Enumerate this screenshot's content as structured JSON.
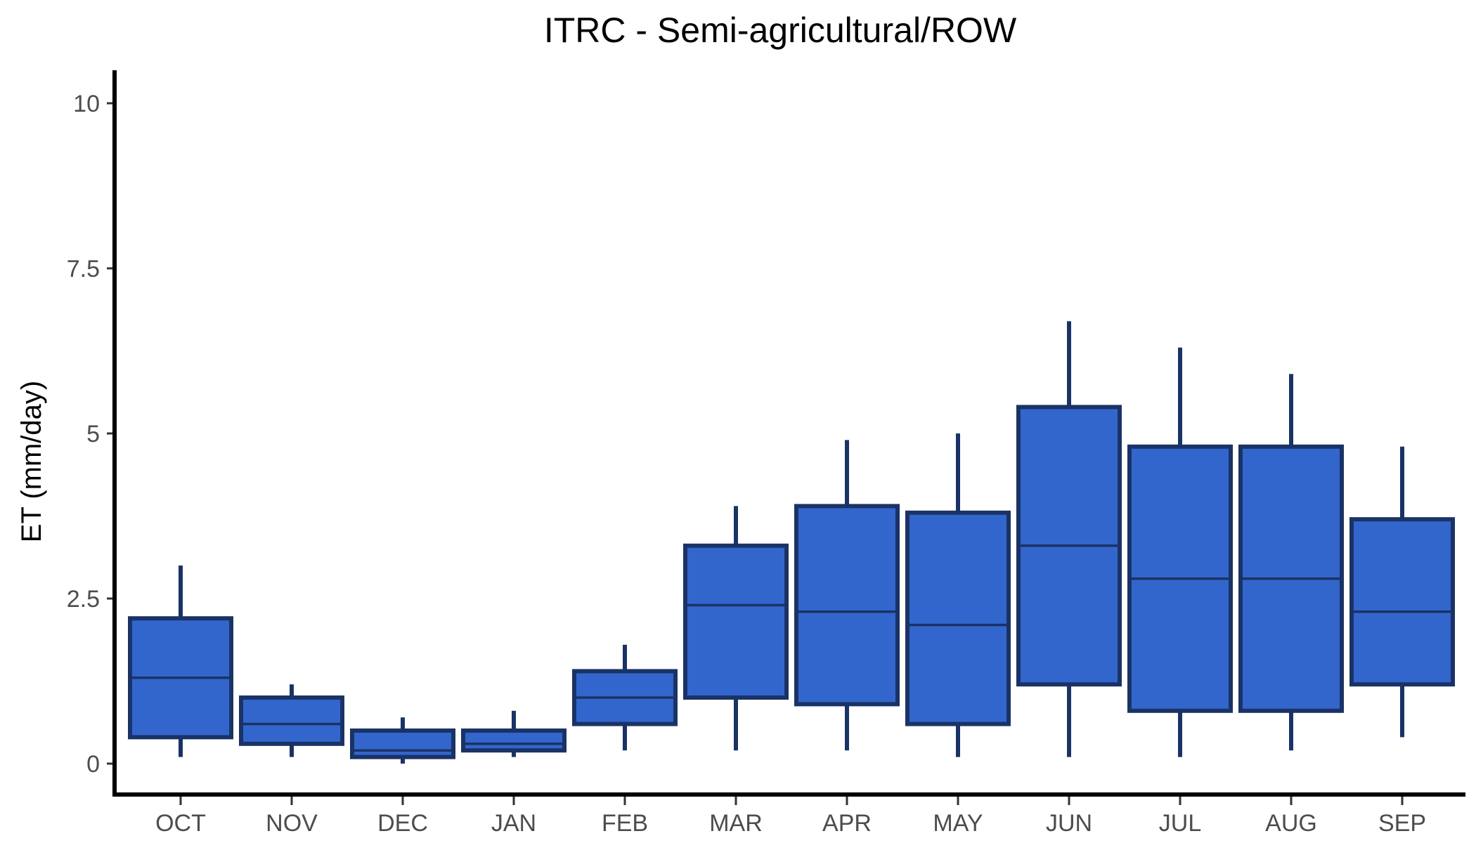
{
  "chart_data": {
    "type": "box",
    "title": "ITRC - Semi-agricultural/ROW",
    "xlabel": "",
    "ylabel": "ET (mm/day)",
    "ylim": [
      -0.5,
      10.5
    ],
    "yticks": [
      0,
      2.5,
      5,
      7.5,
      10
    ],
    "ytick_labels": [
      "0",
      "2.5",
      "5",
      "7.5",
      "10"
    ],
    "grid": false,
    "legend": "none",
    "fill_color": "#3366cc",
    "line_color": "#1a3366",
    "categories": [
      "OCT",
      "NOV",
      "DEC",
      "JAN",
      "FEB",
      "MAR",
      "APR",
      "MAY",
      "JUN",
      "JUL",
      "AUG",
      "SEP"
    ],
    "boxes": [
      {
        "min": 0.1,
        "q1": 0.4,
        "median": 1.3,
        "q3": 2.2,
        "max": 3.0
      },
      {
        "min": 0.1,
        "q1": 0.3,
        "median": 0.6,
        "q3": 1.0,
        "max": 1.2
      },
      {
        "min": 0.0,
        "q1": 0.1,
        "median": 0.2,
        "q3": 0.5,
        "max": 0.7
      },
      {
        "min": 0.1,
        "q1": 0.2,
        "median": 0.3,
        "q3": 0.5,
        "max": 0.8
      },
      {
        "min": 0.2,
        "q1": 0.6,
        "median": 1.0,
        "q3": 1.4,
        "max": 1.8
      },
      {
        "min": 0.2,
        "q1": 1.0,
        "median": 2.4,
        "q3": 3.3,
        "max": 3.9
      },
      {
        "min": 0.2,
        "q1": 0.9,
        "median": 2.3,
        "q3": 3.9,
        "max": 4.9
      },
      {
        "min": 0.1,
        "q1": 0.6,
        "median": 2.1,
        "q3": 3.8,
        "max": 5.0
      },
      {
        "min": 0.1,
        "q1": 1.2,
        "median": 3.3,
        "q3": 5.4,
        "max": 6.7
      },
      {
        "min": 0.1,
        "q1": 0.8,
        "median": 2.8,
        "q3": 4.8,
        "max": 6.3
      },
      {
        "min": 0.2,
        "q1": 0.8,
        "median": 2.8,
        "q3": 4.8,
        "max": 5.9
      },
      {
        "min": 0.4,
        "q1": 1.2,
        "median": 2.3,
        "q3": 3.7,
        "max": 4.8
      }
    ]
  }
}
